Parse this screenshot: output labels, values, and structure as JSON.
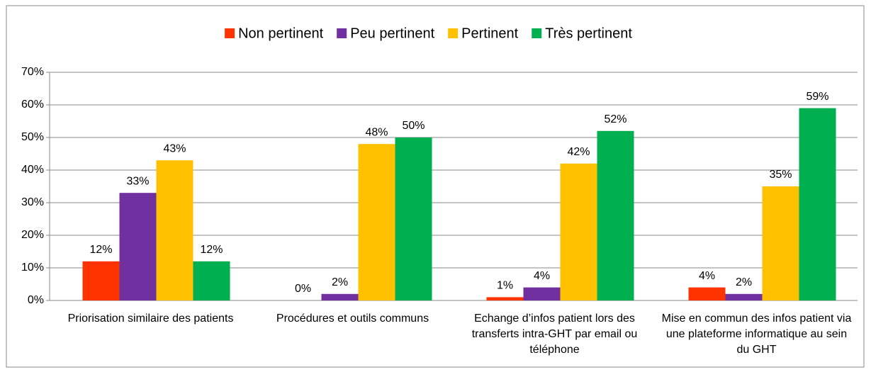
{
  "chart_data": {
    "type": "bar",
    "categories": [
      "Priorisation similaire des patients",
      "Procédures et outils  communs",
      "Echange d’infos patient lors des transferts intra-GHT par email ou téléphone",
      "Mise en commun des infos patient via une plateforme informatique au sein du GHT"
    ],
    "series": [
      {
        "name": "Non pertinent",
        "color": "#ff3300",
        "values": [
          12,
          0,
          1,
          4
        ],
        "value_labels": [
          "12%",
          "0%",
          "1%",
          "4%"
        ]
      },
      {
        "name": "Peu pertinent",
        "color": "#7030a0",
        "values": [
          33,
          2,
          4,
          2
        ],
        "value_labels": [
          "33%",
          "2%",
          "4%",
          "2%"
        ]
      },
      {
        "name": "Pertinent",
        "color": "#ffc000",
        "values": [
          43,
          48,
          42,
          35
        ],
        "value_labels": [
          "43%",
          "48%",
          "42%",
          "35%"
        ]
      },
      {
        "name": "Très pertinent",
        "color": "#00b050",
        "values": [
          12,
          50,
          52,
          59
        ],
        "value_labels": [
          "12%",
          "50%",
          "52%",
          "59%"
        ]
      }
    ],
    "ylim": [
      0,
      70
    ],
    "yticks": [
      {
        "value": 0,
        "label": "0%"
      },
      {
        "value": 10,
        "label": "10%"
      },
      {
        "value": 20,
        "label": "20%"
      },
      {
        "value": 30,
        "label": "30%"
      },
      {
        "value": 40,
        "label": "40%"
      },
      {
        "value": 50,
        "label": "50%"
      },
      {
        "value": 60,
        "label": "60%"
      },
      {
        "value": 70,
        "label": "70%"
      }
    ],
    "grid": true,
    "legend": "top"
  }
}
